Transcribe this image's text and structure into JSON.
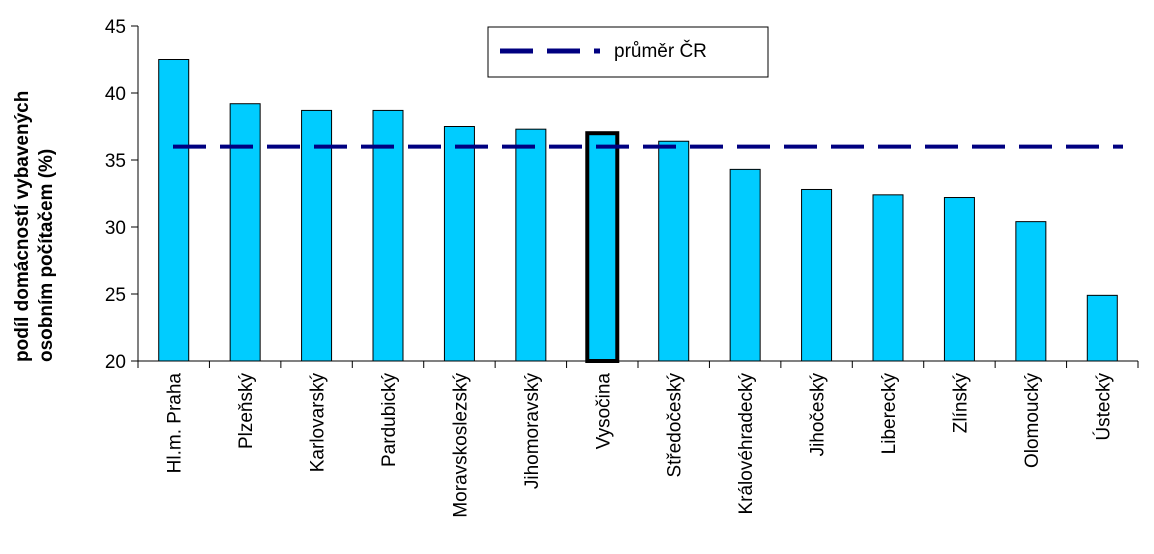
{
  "chart_data": {
    "type": "bar",
    "categories": [
      "Hl.m. Praha",
      "Plzeňský",
      "Karlovarský",
      "Pardubický",
      "Moravskoslezský",
      "Jihomoravský",
      "Vysočina",
      "Středočeský",
      "Královéhradecký",
      "Jihočeský",
      "Liberecký",
      "Zlínský",
      "Olomoucký",
      "Ústecký"
    ],
    "values": [
      42.5,
      39.2,
      38.7,
      38.7,
      37.5,
      37.3,
      37.0,
      36.4,
      34.3,
      32.8,
      32.4,
      32.2,
      30.4,
      24.9
    ],
    "highlight": "Vysočina",
    "reference_line": {
      "name": "průměr ČR",
      "value": 36.0
    },
    "ylabel_line1": "podíl domácností vybavených",
    "ylabel_line2": "osobním počítačem (%)",
    "ylim": [
      20,
      45
    ],
    "yticks": [
      20,
      25,
      30,
      35,
      40,
      45
    ],
    "grid": false,
    "legend_position": "top-center",
    "colors": {
      "bar": "#00ccff",
      "bar_outline": "#000000",
      "reference_line": "#000080"
    }
  }
}
